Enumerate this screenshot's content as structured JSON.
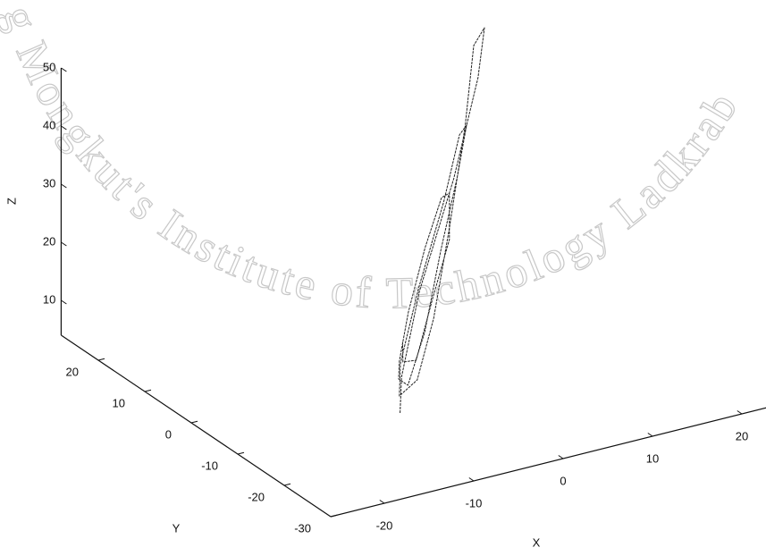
{
  "watermark": "g Mongkut's Institute of Technology Ladkrab",
  "chart_data": {
    "type": "line3d",
    "xlabel": "X",
    "ylabel": "Y",
    "zlabel": "Z",
    "xlim": [
      -26,
      23
    ],
    "ylim": [
      -30,
      28
    ],
    "zlim": [
      4,
      50
    ],
    "xticks": [
      -20,
      -10,
      0,
      10,
      20
    ],
    "yticks": [
      -30,
      -20,
      -10,
      0,
      10,
      20
    ],
    "zticks": [
      10,
      20,
      30,
      40,
      50
    ],
    "grid": false,
    "series": [
      {
        "color": "#222222",
        "x": [
          -12,
          -16,
          -14,
          -6,
          4,
          12,
          16,
          14,
          6,
          -2,
          -8,
          -10,
          -13,
          -11,
          -4,
          4,
          10,
          10,
          4,
          -3,
          -8,
          -8,
          -10,
          -9,
          -4,
          2,
          6,
          6,
          1,
          -5,
          -7,
          -6
        ],
        "y": [
          -18,
          -26,
          -26,
          -18,
          -4,
          10,
          20,
          18,
          6,
          -6,
          -14,
          -14,
          -20,
          -20,
          -12,
          0,
          10,
          12,
          4,
          -6,
          -12,
          -10,
          -14,
          -14,
          -8,
          0,
          6,
          6,
          0,
          -8,
          -9,
          -7
        ],
        "z": [
          10,
          22,
          36,
          48,
          54,
          52,
          42,
          30,
          22,
          16,
          12,
          10,
          20,
          32,
          40,
          42,
          36,
          26,
          20,
          14,
          10,
          10,
          16,
          24,
          30,
          32,
          28,
          20,
          15,
          11,
          12,
          14
        ]
      }
    ]
  }
}
